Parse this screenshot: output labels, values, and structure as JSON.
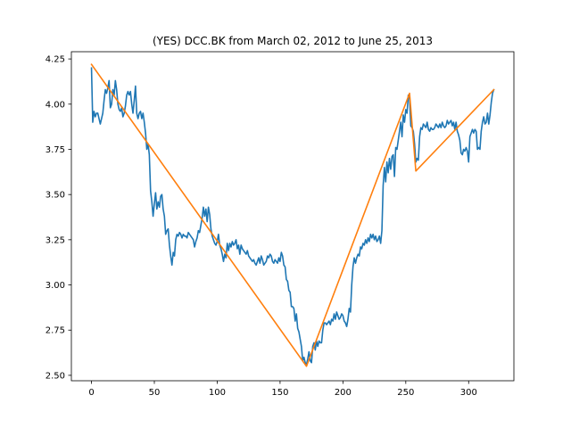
{
  "chart_data": {
    "type": "line",
    "title": "(YES) DCC.BK from March 02, 2012 to June 25, 2013",
    "xlabel": "",
    "ylabel": "",
    "xlim": [
      -16,
      336
    ],
    "ylim": [
      2.47,
      4.29
    ],
    "xticks": [
      0,
      50,
      100,
      150,
      200,
      250,
      300
    ],
    "yticks": [
      2.5,
      2.75,
      3.0,
      3.25,
      3.5,
      3.75,
      4.0,
      4.25
    ],
    "ytick_labels": [
      "2.50",
      "2.75",
      "3.00",
      "3.25",
      "3.50",
      "3.75",
      "4.00",
      "4.25"
    ],
    "grid": false,
    "series": [
      {
        "color": "#1f77b4",
        "points": [
          [
            0,
            4.2
          ],
          [
            1,
            3.9
          ],
          [
            2,
            3.96
          ],
          [
            3,
            3.93
          ],
          [
            4,
            3.95
          ],
          [
            5,
            3.95
          ],
          [
            6,
            3.92
          ],
          [
            7,
            3.89
          ],
          [
            8,
            3.92
          ],
          [
            9,
            3.95
          ],
          [
            10,
            4.02
          ],
          [
            11,
            4.08
          ],
          [
            12,
            4.06
          ],
          [
            13,
            4.09
          ],
          [
            14,
            4.13
          ],
          [
            15,
            3.98
          ],
          [
            16,
            4.0
          ],
          [
            17,
            4.08
          ],
          [
            18,
            4.05
          ],
          [
            19,
            4.13
          ],
          [
            20,
            4.08
          ],
          [
            21,
            4.0
          ],
          [
            22,
            3.97
          ],
          [
            23,
            3.96
          ],
          [
            24,
            3.98
          ],
          [
            25,
            3.93
          ],
          [
            26,
            3.95
          ],
          [
            27,
            3.99
          ],
          [
            28,
            4.05
          ],
          [
            29,
            4.07
          ],
          [
            30,
            4.05
          ],
          [
            31,
            4.07
          ],
          [
            32,
            4.0
          ],
          [
            33,
            3.95
          ],
          [
            34,
            4.02
          ],
          [
            35,
            4.1
          ],
          [
            36,
            3.95
          ],
          [
            37,
            3.92
          ],
          [
            38,
            3.95
          ],
          [
            39,
            3.96
          ],
          [
            40,
            3.92
          ],
          [
            41,
            3.95
          ],
          [
            42,
            3.9
          ],
          [
            43,
            3.84
          ],
          [
            44,
            3.75
          ],
          [
            45,
            3.78
          ],
          [
            46,
            3.72
          ],
          [
            47,
            3.52
          ],
          [
            48,
            3.46
          ],
          [
            49,
            3.38
          ],
          [
            50,
            3.45
          ],
          [
            51,
            3.51
          ],
          [
            52,
            3.42
          ],
          [
            53,
            3.46
          ],
          [
            54,
            3.43
          ],
          [
            55,
            3.49
          ],
          [
            56,
            3.5
          ],
          [
            57,
            3.42
          ],
          [
            58,
            3.38
          ],
          [
            59,
            3.28
          ],
          [
            60,
            3.3
          ],
          [
            61,
            3.31
          ],
          [
            62,
            3.22
          ],
          [
            63,
            3.16
          ],
          [
            64,
            3.11
          ],
          [
            65,
            3.18
          ],
          [
            66,
            3.16
          ],
          [
            67,
            3.25
          ],
          [
            68,
            3.28
          ],
          [
            69,
            3.27
          ],
          [
            70,
            3.29
          ],
          [
            71,
            3.28
          ],
          [
            72,
            3.26
          ],
          [
            73,
            3.28
          ],
          [
            74,
            3.27
          ],
          [
            75,
            3.27
          ],
          [
            76,
            3.26
          ],
          [
            77,
            3.29
          ],
          [
            78,
            3.28
          ],
          [
            79,
            3.27
          ],
          [
            80,
            3.26
          ],
          [
            81,
            3.25
          ],
          [
            82,
            3.21
          ],
          [
            83,
            3.24
          ],
          [
            84,
            3.26
          ],
          [
            85,
            3.3
          ],
          [
            86,
            3.29
          ],
          [
            87,
            3.33
          ],
          [
            88,
            3.37
          ],
          [
            89,
            3.43
          ],
          [
            90,
            3.38
          ],
          [
            91,
            3.42
          ],
          [
            92,
            3.35
          ],
          [
            93,
            3.43
          ],
          [
            94,
            3.39
          ],
          [
            95,
            3.31
          ],
          [
            96,
            3.27
          ],
          [
            97,
            3.25
          ],
          [
            98,
            3.23
          ],
          [
            99,
            3.22
          ],
          [
            100,
            3.24
          ],
          [
            101,
            3.28
          ],
          [
            102,
            3.22
          ],
          [
            103,
            3.2
          ],
          [
            104,
            3.17
          ],
          [
            105,
            3.13
          ],
          [
            106,
            3.17
          ],
          [
            107,
            3.15
          ],
          [
            108,
            3.23
          ],
          [
            109,
            3.19
          ],
          [
            110,
            3.23
          ],
          [
            111,
            3.21
          ],
          [
            112,
            3.24
          ],
          [
            113,
            3.22
          ],
          [
            114,
            3.23
          ],
          [
            115,
            3.25
          ],
          [
            116,
            3.2
          ],
          [
            117,
            3.22
          ],
          [
            118,
            3.17
          ],
          [
            119,
            3.22
          ],
          [
            120,
            3.2
          ],
          [
            121,
            3.19
          ],
          [
            122,
            3.18
          ],
          [
            123,
            3.17
          ],
          [
            124,
            3.19
          ],
          [
            125,
            3.16
          ],
          [
            126,
            3.15
          ],
          [
            127,
            3.14
          ],
          [
            128,
            3.13
          ],
          [
            129,
            3.14
          ],
          [
            130,
            3.12
          ],
          [
            131,
            3.11
          ],
          [
            132,
            3.13
          ],
          [
            133,
            3.15
          ],
          [
            134,
            3.12
          ],
          [
            135,
            3.16
          ],
          [
            136,
            3.14
          ],
          [
            137,
            3.11
          ],
          [
            138,
            3.12
          ],
          [
            139,
            3.13
          ],
          [
            140,
            3.16
          ],
          [
            141,
            3.15
          ],
          [
            142,
            3.17
          ],
          [
            143,
            3.16
          ],
          [
            144,
            3.13
          ],
          [
            145,
            3.12
          ],
          [
            146,
            3.14
          ],
          [
            147,
            3.13
          ],
          [
            148,
            3.12
          ],
          [
            149,
            3.15
          ],
          [
            150,
            3.13
          ],
          [
            151,
            3.18
          ],
          [
            152,
            3.16
          ],
          [
            153,
            3.11
          ],
          [
            154,
            3.1
          ],
          [
            155,
            3.03
          ],
          [
            156,
            3.02
          ],
          [
            157,
            2.97
          ],
          [
            158,
            2.96
          ],
          [
            159,
            2.88
          ],
          [
            160,
            2.88
          ],
          [
            161,
            2.87
          ],
          [
            162,
            2.8
          ],
          [
            163,
            2.84
          ],
          [
            164,
            2.76
          ],
          [
            165,
            2.74
          ],
          [
            166,
            2.7
          ],
          [
            167,
            2.66
          ],
          [
            168,
            2.58
          ],
          [
            169,
            2.6
          ],
          [
            170,
            2.57
          ],
          [
            171,
            2.56
          ],
          [
            172,
            2.59
          ],
          [
            173,
            2.63
          ],
          [
            174,
            2.58
          ],
          [
            175,
            2.57
          ],
          [
            176,
            2.66
          ],
          [
            177,
            2.68
          ],
          [
            178,
            2.64
          ],
          [
            179,
            2.69
          ],
          [
            180,
            2.66
          ],
          [
            181,
            2.69
          ],
          [
            182,
            2.68
          ],
          [
            183,
            2.68
          ],
          [
            184,
            2.75
          ],
          [
            185,
            2.79
          ],
          [
            186,
            2.79
          ],
          [
            187,
            2.78
          ],
          [
            188,
            2.79
          ],
          [
            189,
            2.8
          ],
          [
            190,
            2.78
          ],
          [
            191,
            2.81
          ],
          [
            192,
            2.8
          ],
          [
            193,
            2.84
          ],
          [
            194,
            2.81
          ],
          [
            195,
            2.85
          ],
          [
            196,
            2.83
          ],
          [
            197,
            2.81
          ],
          [
            198,
            2.82
          ],
          [
            199,
            2.84
          ],
          [
            200,
            2.83
          ],
          [
            201,
            2.8
          ],
          [
            202,
            2.79
          ],
          [
            203,
            2.77
          ],
          [
            204,
            2.81
          ],
          [
            205,
            2.87
          ],
          [
            206,
            2.85
          ],
          [
            207,
            3.0
          ],
          [
            208,
            3.1
          ],
          [
            209,
            3.15
          ],
          [
            210,
            3.12
          ],
          [
            211,
            3.15
          ],
          [
            212,
            3.17
          ],
          [
            213,
            3.16
          ],
          [
            214,
            3.21
          ],
          [
            215,
            3.2
          ],
          [
            216,
            3.23
          ],
          [
            217,
            3.22
          ],
          [
            218,
            3.25
          ],
          [
            219,
            3.23
          ],
          [
            220,
            3.26
          ],
          [
            221,
            3.24
          ],
          [
            222,
            3.28
          ],
          [
            223,
            3.26
          ],
          [
            224,
            3.28
          ],
          [
            225,
            3.25
          ],
          [
            226,
            3.27
          ],
          [
            227,
            3.24
          ],
          [
            228,
            3.25
          ],
          [
            229,
            3.27
          ],
          [
            230,
            3.23
          ],
          [
            231,
            3.3
          ],
          [
            232,
            3.55
          ],
          [
            233,
            3.65
          ],
          [
            234,
            3.57
          ],
          [
            235,
            3.68
          ],
          [
            236,
            3.62
          ],
          [
            237,
            3.7
          ],
          [
            238,
            3.64
          ],
          [
            239,
            3.71
          ],
          [
            240,
            3.72
          ],
          [
            241,
            3.6
          ],
          [
            242,
            3.76
          ],
          [
            243,
            3.75
          ],
          [
            244,
            3.8
          ],
          [
            245,
            3.85
          ],
          [
            246,
            3.9
          ],
          [
            247,
            3.82
          ],
          [
            248,
            3.94
          ],
          [
            249,
            3.9
          ],
          [
            250,
            3.97
          ],
          [
            251,
            3.95
          ],
          [
            252,
            4.05
          ],
          [
            253,
            4.03
          ],
          [
            254,
            3.88
          ],
          [
            255,
            3.87
          ],
          [
            256,
            3.85
          ],
          [
            257,
            3.78
          ],
          [
            258,
            3.68
          ],
          [
            259,
            3.7
          ],
          [
            260,
            3.69
          ],
          [
            261,
            3.82
          ],
          [
            262,
            3.87
          ],
          [
            263,
            3.86
          ],
          [
            264,
            3.89
          ],
          [
            265,
            3.88
          ],
          [
            266,
            3.87
          ],
          [
            267,
            3.9
          ],
          [
            268,
            3.86
          ],
          [
            269,
            3.85
          ],
          [
            270,
            3.87
          ],
          [
            271,
            3.86
          ],
          [
            272,
            3.86
          ],
          [
            273,
            3.87
          ],
          [
            274,
            3.89
          ],
          [
            275,
            3.88
          ],
          [
            276,
            3.87
          ],
          [
            277,
            3.89
          ],
          [
            278,
            3.87
          ],
          [
            279,
            3.9
          ],
          [
            280,
            3.88
          ],
          [
            281,
            3.87
          ],
          [
            282,
            3.88
          ],
          [
            283,
            3.91
          ],
          [
            284,
            3.89
          ],
          [
            285,
            3.9
          ],
          [
            286,
            3.91
          ],
          [
            287,
            3.88
          ],
          [
            288,
            3.9
          ],
          [
            289,
            3.86
          ],
          [
            290,
            3.9
          ],
          [
            291,
            3.85
          ],
          [
            292,
            3.83
          ],
          [
            293,
            3.8
          ],
          [
            294,
            3.73
          ],
          [
            295,
            3.72
          ],
          [
            296,
            3.75
          ],
          [
            297,
            3.74
          ],
          [
            298,
            3.76
          ],
          [
            299,
            3.74
          ],
          [
            300,
            3.68
          ],
          [
            301,
            3.82
          ],
          [
            302,
            3.84
          ],
          [
            303,
            3.86
          ],
          [
            304,
            3.84
          ],
          [
            305,
            3.86
          ],
          [
            306,
            3.85
          ],
          [
            307,
            3.75
          ],
          [
            308,
            3.76
          ],
          [
            309,
            3.75
          ],
          [
            310,
            3.85
          ],
          [
            311,
            3.9
          ],
          [
            312,
            3.93
          ],
          [
            313,
            3.89
          ],
          [
            314,
            3.9
          ],
          [
            315,
            3.95
          ],
          [
            316,
            3.89
          ],
          [
            317,
            3.94
          ],
          [
            318,
            4.01
          ],
          [
            319,
            4.06
          ],
          [
            320,
            4.08
          ]
        ]
      },
      {
        "color": "#ff7f0e",
        "points": [
          [
            0,
            4.22
          ],
          [
            171,
            2.55
          ],
          [
            253,
            4.06
          ],
          [
            258,
            3.63
          ],
          [
            320,
            4.08
          ]
        ]
      }
    ]
  }
}
